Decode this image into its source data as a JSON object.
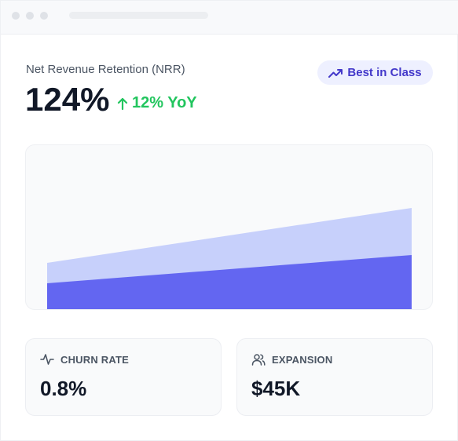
{
  "metric": {
    "label": "Net Revenue Retention (NRR)",
    "value": "124%",
    "delta": "12% YoY"
  },
  "badge": {
    "label": "Best in Class"
  },
  "chart_data": {
    "type": "area",
    "x": [
      0,
      1
    ],
    "series": [
      {
        "values": [
          0.3,
          0.65
        ],
        "color": "#c7d0fb"
      },
      {
        "values": [
          0.17,
          0.35
        ],
        "color": "#6366f1"
      }
    ]
  },
  "stats": [
    {
      "label": "CHURN RATE",
      "value": "0.8%",
      "icon": "activity-icon"
    },
    {
      "label": "EXPANSION",
      "value": "$45K",
      "icon": "users-icon"
    }
  ],
  "colors": {
    "accent": "#6366f1",
    "accent_light": "#c7d0fb",
    "positive": "#22c55e",
    "badge_text": "#4338ca"
  }
}
